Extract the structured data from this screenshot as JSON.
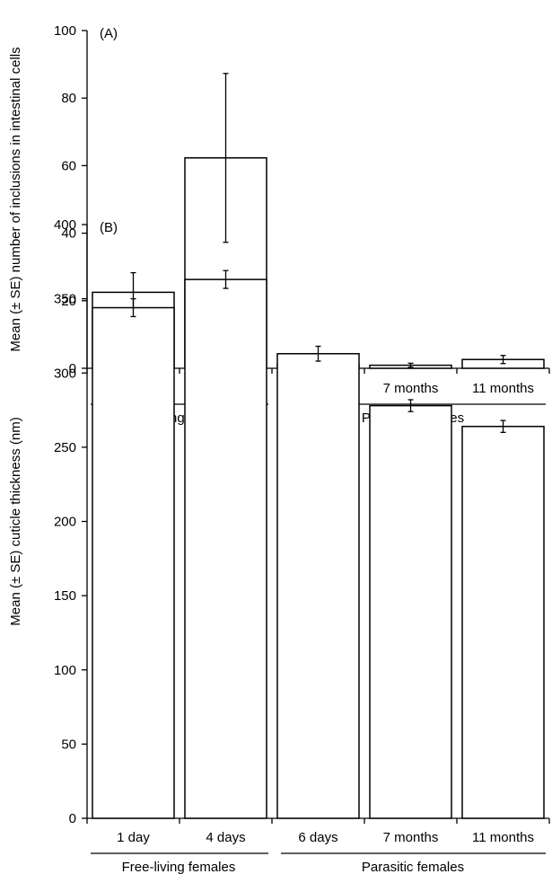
{
  "chart_data": [
    {
      "type": "bar",
      "panel_label": "(A)",
      "ylabel": "Mean (± SE) number of inclusions in intestinal cells",
      "ylim": [
        0,
        100
      ],
      "yticks": [
        0,
        20,
        40,
        60,
        80,
        100
      ],
      "ytick_labels": [
        "0",
        "20",
        "40",
        "60",
        "80",
        "100"
      ],
      "categories": [
        "1 day",
        "4 days",
        "6 days",
        "7 months",
        "11 months"
      ],
      "values": [
        22.5,
        62.3,
        1.3,
        0.9,
        2.6
      ],
      "errors": [
        5.8,
        25.0,
        0.9,
        0.6,
        1.2
      ],
      "groups": [
        {
          "label": "Free-living females",
          "categories": [
            "1 day",
            "4 days"
          ]
        },
        {
          "label": "Parasitic females",
          "categories": [
            "6 days",
            "7 months",
            "11 months"
          ]
        }
      ],
      "grid": false,
      "legend": "none"
    },
    {
      "type": "bar",
      "panel_label": "(B)",
      "ylabel": "Mean (± SE) cuticle thickness (nm)",
      "ylim": [
        0,
        400
      ],
      "yticks": [
        0,
        50,
        100,
        150,
        200,
        250,
        300,
        350,
        400
      ],
      "ytick_labels": [
        "0",
        "50",
        "100",
        "150",
        "200",
        "250",
        "300",
        "350",
        "400"
      ],
      "categories": [
        "1 day",
        "4 days",
        "6 days",
        "7 months",
        "11 months"
      ],
      "values": [
        344,
        363,
        313,
        278,
        264
      ],
      "errors": [
        6,
        6,
        5,
        4,
        4
      ],
      "groups": [
        {
          "label": "Free-living females",
          "categories": [
            "1 day",
            "4 days"
          ]
        },
        {
          "label": "Parasitic females",
          "categories": [
            "6 days",
            "7 months",
            "11 months"
          ]
        }
      ],
      "grid": false,
      "legend": "none"
    }
  ]
}
